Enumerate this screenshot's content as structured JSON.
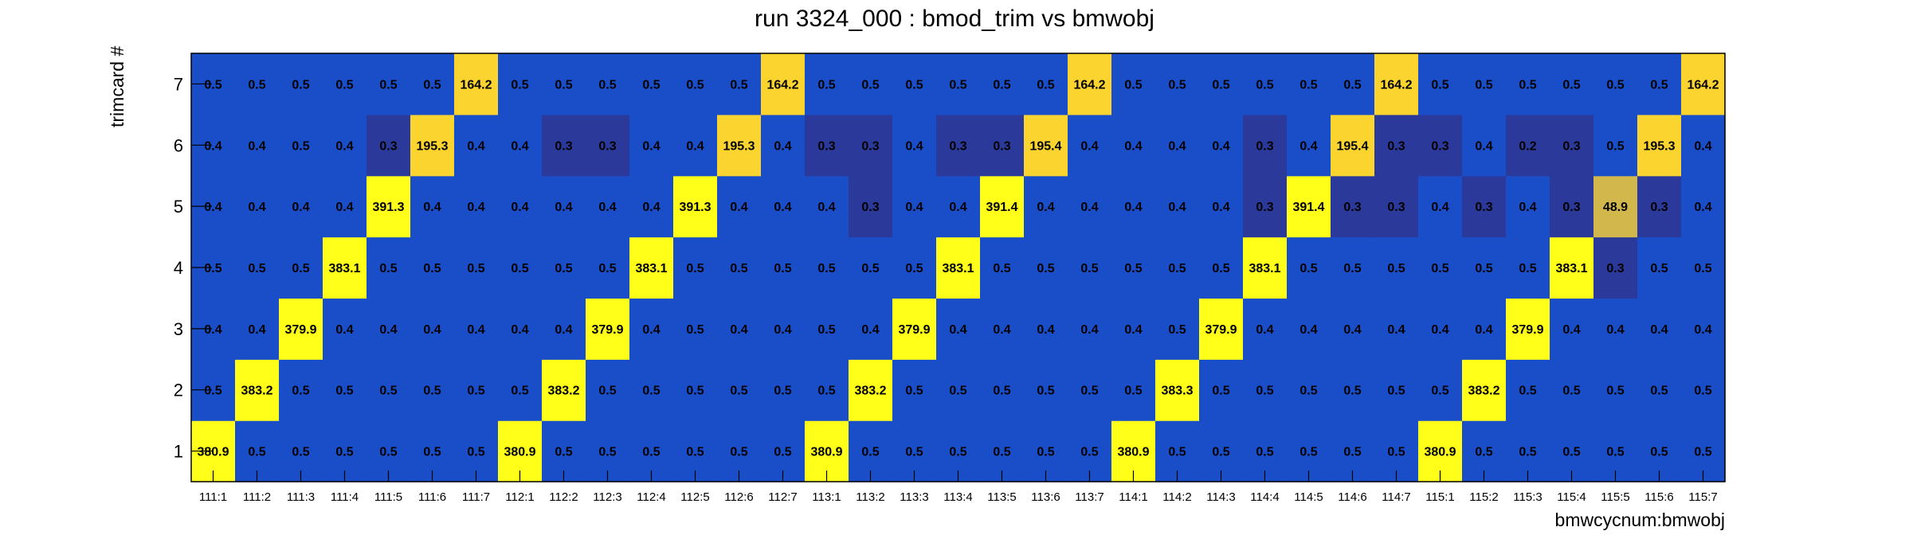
{
  "chart_data": {
    "type": "heatmap",
    "title": "run 3324_000 : bmod_trim vs bmwobj",
    "xlabel": "bmwcycnum:bmwobj",
    "ylabel": "trimcard #",
    "x_categories": [
      "111:1",
      "111:2",
      "111:3",
      "111:4",
      "111:5",
      "111:6",
      "111:7",
      "112:1",
      "112:2",
      "112:3",
      "112:4",
      "112:5",
      "112:6",
      "112:7",
      "113:1",
      "113:2",
      "113:3",
      "113:4",
      "113:5",
      "113:6",
      "113:7",
      "114:1",
      "114:2",
      "114:3",
      "114:4",
      "114:5",
      "114:6",
      "114:7",
      "115:1",
      "115:2",
      "115:3",
      "115:4",
      "115:5",
      "115:6",
      "115:7"
    ],
    "y_categories": [
      "1",
      "2",
      "3",
      "4",
      "5",
      "6",
      "7"
    ],
    "values": [
      [
        380.9,
        0.5,
        0.5,
        0.5,
        0.5,
        0.5,
        0.5,
        380.9,
        0.5,
        0.5,
        0.5,
        0.5,
        0.5,
        0.5,
        380.9,
        0.5,
        0.5,
        0.5,
        0.5,
        0.5,
        0.5,
        380.9,
        0.5,
        0.5,
        0.5,
        0.5,
        0.5,
        0.5,
        380.9,
        0.5,
        0.5,
        0.5,
        0.5,
        0.5,
        0.5
      ],
      [
        0.5,
        383.2,
        0.5,
        0.5,
        0.5,
        0.5,
        0.5,
        0.5,
        383.2,
        0.5,
        0.5,
        0.5,
        0.5,
        0.5,
        0.5,
        383.2,
        0.5,
        0.5,
        0.5,
        0.5,
        0.5,
        0.5,
        383.3,
        0.5,
        0.5,
        0.5,
        0.5,
        0.5,
        0.5,
        383.2,
        0.5,
        0.5,
        0.5,
        0.5,
        0.5
      ],
      [
        0.4,
        0.4,
        379.9,
        0.4,
        0.4,
        0.4,
        0.4,
        0.4,
        0.4,
        379.9,
        0.4,
        0.5,
        0.4,
        0.4,
        0.5,
        0.4,
        379.9,
        0.4,
        0.4,
        0.4,
        0.4,
        0.4,
        0.5,
        379.9,
        0.4,
        0.4,
        0.4,
        0.4,
        0.4,
        0.4,
        379.9,
        0.4,
        0.4,
        0.4,
        0.4
      ],
      [
        0.5,
        0.5,
        0.5,
        383.1,
        0.5,
        0.5,
        0.5,
        0.5,
        0.5,
        0.5,
        383.1,
        0.5,
        0.5,
        0.5,
        0.5,
        0.5,
        0.5,
        383.1,
        0.5,
        0.5,
        0.5,
        0.5,
        0.5,
        0.5,
        383.1,
        0.5,
        0.5,
        0.5,
        0.5,
        0.5,
        0.5,
        383.1,
        0.3,
        0.5,
        0.5
      ],
      [
        0.4,
        0.4,
        0.4,
        0.4,
        391.3,
        0.4,
        0.4,
        0.4,
        0.4,
        0.4,
        0.4,
        391.3,
        0.4,
        0.4,
        0.4,
        0.3,
        0.4,
        0.4,
        391.4,
        0.4,
        0.4,
        0.4,
        0.4,
        0.4,
        0.3,
        391.4,
        0.3,
        0.3,
        0.4,
        0.3,
        0.4,
        0.3,
        48.9,
        0.3,
        0.4
      ],
      [
        0.4,
        0.4,
        0.5,
        0.4,
        0.3,
        195.3,
        0.4,
        0.4,
        0.3,
        0.3,
        0.4,
        0.4,
        195.3,
        0.4,
        0.3,
        0.3,
        0.4,
        0.3,
        0.3,
        195.4,
        0.4,
        0.4,
        0.4,
        0.4,
        0.3,
        0.4,
        195.4,
        0.3,
        0.3,
        0.4,
        0.2,
        0.3,
        0.5,
        195.3,
        0.4
      ],
      [
        0.5,
        0.5,
        0.5,
        0.5,
        0.5,
        0.5,
        164.2,
        0.5,
        0.5,
        0.5,
        0.5,
        0.5,
        0.5,
        164.2,
        0.5,
        0.5,
        0.5,
        0.5,
        0.5,
        0.5,
        164.2,
        0.5,
        0.5,
        0.5,
        0.5,
        0.5,
        0.5,
        164.2,
        0.5,
        0.5,
        0.5,
        0.5,
        0.5,
        0.5,
        164.2
      ]
    ],
    "colors": {
      "base": "#1a4ec9",
      "low": "#2b3a9a",
      "high": "#ffff1a",
      "mid_high": "#fcd430",
      "middle": "#d2b74d"
    }
  }
}
